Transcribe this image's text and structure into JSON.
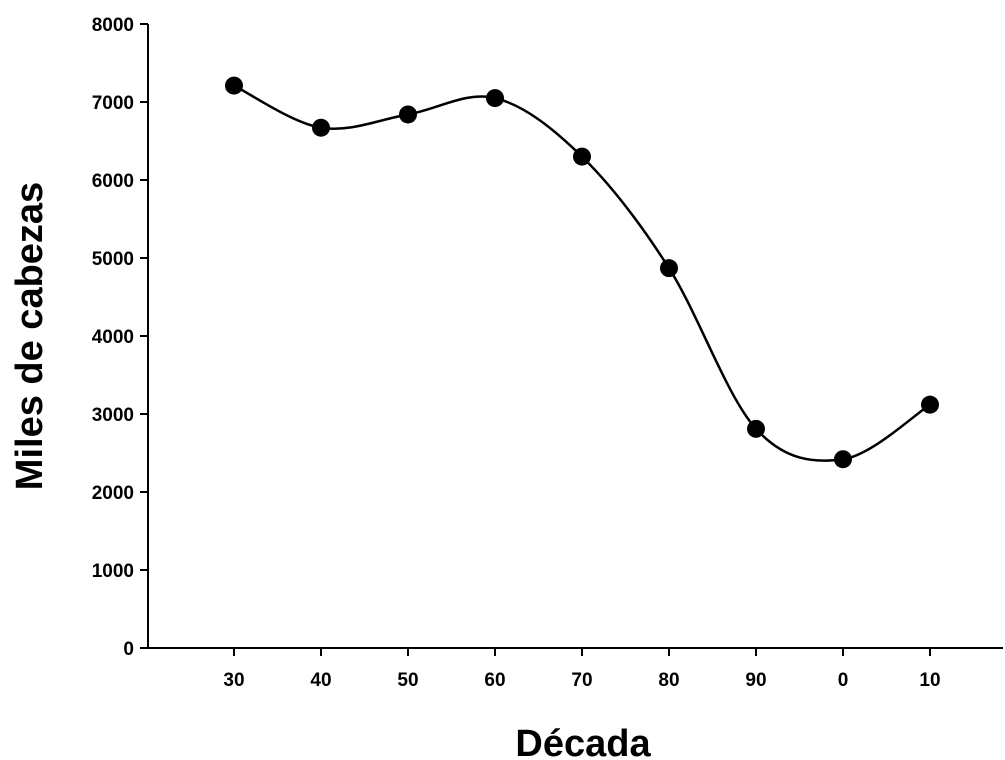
{
  "chart_data": {
    "type": "line",
    "title": "",
    "xlabel": "Década",
    "ylabel": "Miles de cabezas",
    "categories": [
      "30",
      "40",
      "50",
      "60",
      "70",
      "80",
      "90",
      "0",
      "10"
    ],
    "series": [
      {
        "values": [
          7210,
          6670,
          6840,
          7050,
          6300,
          4870,
          2810,
          2420,
          3120
        ]
      }
    ],
    "ylim": [
      0,
      8000
    ],
    "yticks": [
      "0",
      "1000",
      "2000",
      "3000",
      "4000",
      "5000",
      "6000",
      "7000",
      "8000"
    ],
    "line_style": "smooth curve with filled circle markers",
    "grid": false,
    "legend": "none",
    "colors": {
      "line": "#000000",
      "marker": "#000000"
    }
  }
}
